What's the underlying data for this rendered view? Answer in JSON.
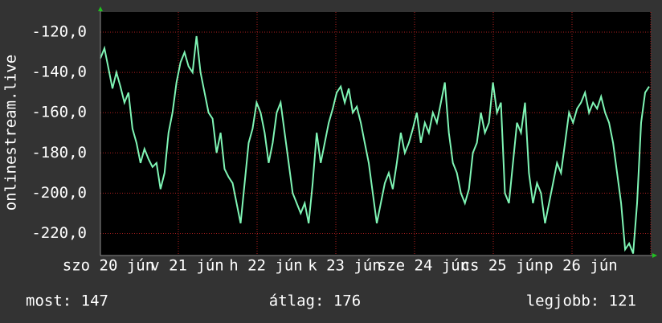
{
  "chart_data": {
    "type": "line",
    "y_label": "onlinestream.live",
    "x_labels": [
      "szo 20 jún",
      "v 21 jún",
      "h 22 jún",
      "k 23 jún",
      "sze 24 jún",
      "cs 25 jún",
      "p 26 jún"
    ],
    "color": "#7ff5b5",
    "grid_color": "#b02020",
    "ylim": [
      -231,
      -110
    ],
    "yticks": [
      {
        "value": -220,
        "label": "-220,0"
      },
      {
        "value": -200,
        "label": "-200,0"
      },
      {
        "value": -180,
        "label": "-180,0"
      },
      {
        "value": -160,
        "label": "-160,0"
      },
      {
        "value": -140,
        "label": "-140,0"
      },
      {
        "value": -120,
        "label": "-120,0"
      }
    ],
    "values": [
      -133,
      -128,
      -138,
      -148,
      -140,
      -147,
      -155,
      -150,
      -168,
      -175,
      -185,
      -178,
      -183,
      -187,
      -185,
      -198,
      -190,
      -170,
      -160,
      -145,
      -135,
      -130,
      -137,
      -140,
      -122,
      -140,
      -150,
      -160,
      -163,
      -180,
      -170,
      -188,
      -192,
      -195,
      -205,
      -215,
      -195,
      -175,
      -168,
      -155,
      -160,
      -170,
      -185,
      -175,
      -160,
      -155,
      -170,
      -185,
      -200,
      -205,
      -210,
      -205,
      -215,
      -195,
      -170,
      -185,
      -175,
      -165,
      -158,
      -150,
      -147,
      -155,
      -148,
      -160,
      -157,
      -165,
      -175,
      -185,
      -200,
      -215,
      -205,
      -195,
      -190,
      -198,
      -185,
      -170,
      -180,
      -175,
      -168,
      -160,
      -175,
      -165,
      -170,
      -160,
      -165,
      -155,
      -145,
      -170,
      -185,
      -190,
      -200,
      -205,
      -198,
      -180,
      -175,
      -160,
      -170,
      -165,
      -145,
      -160,
      -155,
      -200,
      -205,
      -185,
      -165,
      -170,
      -155,
      -190,
      -205,
      -195,
      -200,
      -215,
      -205,
      -195,
      -185,
      -190,
      -175,
      -160,
      -165,
      -158,
      -155,
      -150,
      -160,
      -155,
      -158,
      -152,
      -160,
      -165,
      -175,
      -190,
      -205,
      -228,
      -225,
      -230,
      -205,
      -165,
      -150,
      -147
    ],
    "stats": [
      "most: 147",
      "átlag: 176",
      "legjobb: 121"
    ]
  }
}
